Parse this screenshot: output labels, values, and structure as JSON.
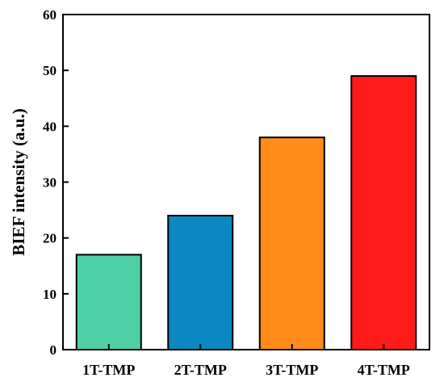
{
  "chart_data": {
    "type": "bar",
    "title": "",
    "xlabel": "",
    "ylabel": "BIEF intensity (a.u.)",
    "categories": [
      "1T-TMP",
      "2T-TMP",
      "3T-TMP",
      "4T-TMP"
    ],
    "values": [
      17,
      24,
      38,
      49
    ],
    "colors": [
      "#4ecfa6",
      "#0a88c2",
      "#ff8c1a",
      "#ff1a1a"
    ],
    "ylim": [
      0,
      60
    ],
    "yticks": [
      0,
      10,
      20,
      30,
      40,
      50,
      60
    ],
    "grid": false,
    "legend": "none"
  }
}
